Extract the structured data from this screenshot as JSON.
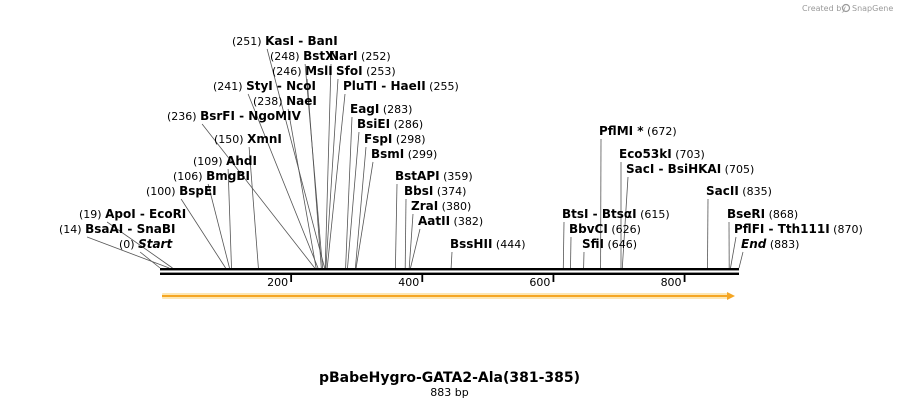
{
  "credit": {
    "prefix": "Created by",
    "brand": "SnapGene"
  },
  "plasmid": {
    "name": "pBabeHygro-GATA2-Ala(381-385)",
    "size_label": "883 bp",
    "length": 883
  },
  "axis": {
    "ticks": [
      200,
      400,
      600,
      800
    ]
  },
  "feature": {
    "name": "ORF arrow",
    "start": 1,
    "end": 883,
    "color": "#f5a623"
  },
  "sites": [
    {
      "pos": 0,
      "pos_label": "(0)",
      "names": [
        "Start"
      ],
      "italic": true,
      "side": "left"
    },
    {
      "pos": 14,
      "pos_label": "(14)",
      "names": [
        "BsaAI",
        "SnaBI"
      ],
      "side": "left"
    },
    {
      "pos": 19,
      "pos_label": "(19)",
      "names": [
        "ApoI",
        "EcoRI"
      ],
      "side": "left"
    },
    {
      "pos": 100,
      "pos_label": "(100)",
      "names": [
        "BspEI"
      ],
      "side": "left"
    },
    {
      "pos": 106,
      "pos_label": "(106)",
      "names": [
        "BmgBI"
      ],
      "side": "left"
    },
    {
      "pos": 109,
      "pos_label": "(109)",
      "names": [
        "AhdI"
      ],
      "side": "left"
    },
    {
      "pos": 150,
      "pos_label": "(150)",
      "names": [
        "XmnI"
      ],
      "side": "left"
    },
    {
      "pos": 236,
      "pos_label": "(236)",
      "names": [
        "BsrFI",
        "NgoMIV"
      ],
      "side": "left"
    },
    {
      "pos": 238,
      "pos_label": "(238)",
      "names": [
        "NaeI"
      ],
      "side": "left"
    },
    {
      "pos": 241,
      "pos_label": "(241)",
      "names": [
        "StyI",
        "NcoI"
      ],
      "side": "left"
    },
    {
      "pos": 246,
      "pos_label": "(246)",
      "names": [
        "MslI"
      ],
      "side": "left"
    },
    {
      "pos": 248,
      "pos_label": "(248)",
      "names": [
        "BstXI"
      ],
      "side": "left"
    },
    {
      "pos": 251,
      "pos_label": "(251)",
      "names": [
        "KasI",
        "BanI"
      ],
      "side": "left"
    },
    {
      "pos": 252,
      "pos_label": "(252)",
      "names": [
        "NarI"
      ],
      "side": "right"
    },
    {
      "pos": 253,
      "pos_label": "(253)",
      "names": [
        "SfoI"
      ],
      "side": "right"
    },
    {
      "pos": 255,
      "pos_label": "(255)",
      "names": [
        "PluTI",
        "HaeII"
      ],
      "side": "right"
    },
    {
      "pos": 283,
      "pos_label": "(283)",
      "names": [
        "EagI"
      ],
      "side": "right"
    },
    {
      "pos": 286,
      "pos_label": "(286)",
      "names": [
        "BsiEI"
      ],
      "side": "right"
    },
    {
      "pos": 298,
      "pos_label": "(298)",
      "names": [
        "FspI"
      ],
      "side": "right"
    },
    {
      "pos": 299,
      "pos_label": "(299)",
      "names": [
        "BsmI"
      ],
      "side": "right"
    },
    {
      "pos": 359,
      "pos_label": "(359)",
      "names": [
        "BstAPI"
      ],
      "side": "right"
    },
    {
      "pos": 374,
      "pos_label": "(374)",
      "names": [
        "BbsI"
      ],
      "side": "right"
    },
    {
      "pos": 380,
      "pos_label": "(380)",
      "names": [
        "ZraI"
      ],
      "side": "right"
    },
    {
      "pos": 382,
      "pos_label": "(382)",
      "names": [
        "AatII"
      ],
      "side": "right"
    },
    {
      "pos": 444,
      "pos_label": "(444)",
      "names": [
        "BssHII"
      ],
      "side": "right"
    },
    {
      "pos": 615,
      "pos_label": "(615)",
      "names": [
        "BtsI",
        "BtsαI"
      ],
      "side": "right"
    },
    {
      "pos": 626,
      "pos_label": "(626)",
      "names": [
        "BbvCI"
      ],
      "side": "right"
    },
    {
      "pos": 646,
      "pos_label": "(646)",
      "names": [
        "SfiI"
      ],
      "side": "right"
    },
    {
      "pos": 672,
      "pos_label": "(672)",
      "names": [
        "PflMI *"
      ],
      "side": "right"
    },
    {
      "pos": 703,
      "pos_label": "(703)",
      "names": [
        "Eco53kI"
      ],
      "side": "right"
    },
    {
      "pos": 705,
      "pos_label": "(705)",
      "names": [
        "SacI",
        "BsiHKAI"
      ],
      "side": "right"
    },
    {
      "pos": 835,
      "pos_label": "(835)",
      "names": [
        "SacII"
      ],
      "side": "right"
    },
    {
      "pos": 868,
      "pos_label": "(868)",
      "names": [
        "BseRI"
      ],
      "side": "right"
    },
    {
      "pos": 870,
      "pos_label": "(870)",
      "names": [
        "PflFI",
        "Tth111I"
      ],
      "side": "right"
    },
    {
      "pos": 883,
      "pos_label": "(883)",
      "names": [
        "End"
      ],
      "italic": true,
      "side": "right"
    }
  ]
}
